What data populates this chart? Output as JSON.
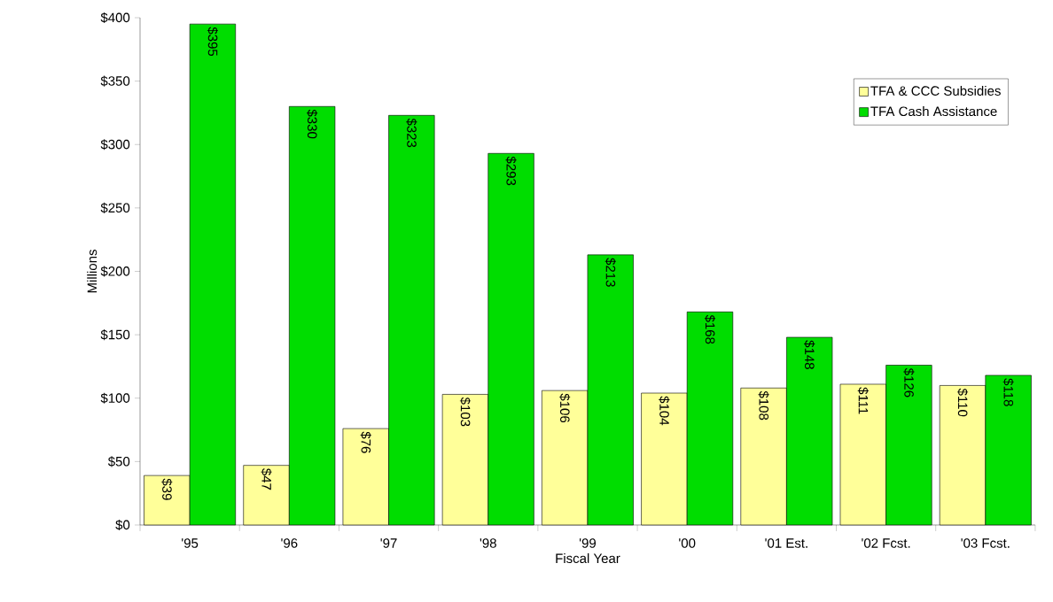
{
  "chart_data": {
    "type": "bar",
    "xlabel": "Fiscal Year",
    "ylabel": "Millions",
    "categories": [
      "'95",
      "'96",
      "'97",
      "'98",
      "'99",
      "'00",
      "'01 Est.",
      "'02 Fcst.",
      "'03 Fcst."
    ],
    "series": [
      {
        "name": "TFA & CCC Subsidies",
        "color": "#ffff99",
        "values": [
          39,
          47,
          76,
          103,
          106,
          104,
          108,
          111,
          110
        ],
        "value_labels": [
          "$39",
          "$47",
          "$76",
          "$103",
          "$106",
          "$104",
          "$108",
          "$111",
          "$110"
        ]
      },
      {
        "name": "TFA Cash Assistance",
        "color": "#00dd00",
        "values": [
          395,
          330,
          323,
          293,
          213,
          168,
          148,
          126,
          118
        ],
        "value_labels": [
          "$395",
          "$330",
          "$323",
          "$293",
          "$213",
          "$168",
          "$148",
          "$126",
          "$118"
        ]
      }
    ],
    "ylim": [
      0,
      400
    ],
    "yticks": [
      {
        "value": 0,
        "label": "$0"
      },
      {
        "value": 50,
        "label": "$50"
      },
      {
        "value": 100,
        "label": "$100"
      },
      {
        "value": 150,
        "label": "$150"
      },
      {
        "value": 200,
        "label": "$200"
      },
      {
        "value": 250,
        "label": "$250"
      },
      {
        "value": 300,
        "label": "$300"
      },
      {
        "value": 350,
        "label": "$350"
      },
      {
        "value": 400,
        "label": "$400"
      }
    ],
    "legend": "top right"
  }
}
